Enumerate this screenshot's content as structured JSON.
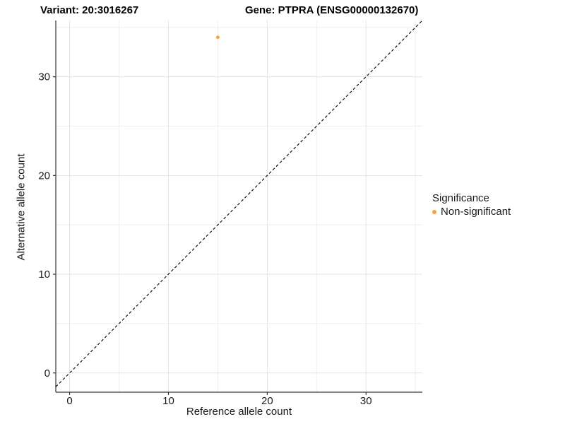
{
  "chart_data": {
    "type": "scatter",
    "titles": {
      "left": "Variant: 20:3016267",
      "right": "Gene: PTPRA (ENSG00000132670)"
    },
    "xlabel": "Reference allele count",
    "ylabel": "Alternative allele count",
    "xlim": [
      -1.4,
      35.7
    ],
    "ylim": [
      -1.95,
      35.7
    ],
    "x_ticks": [
      0,
      10,
      20,
      30
    ],
    "y_ticks": [
      0,
      10,
      20,
      30
    ],
    "x_minor_gridlines": [
      5,
      15,
      25,
      35
    ],
    "y_minor_gridlines": [
      5,
      15,
      25,
      35
    ],
    "grid": true,
    "identity_line": {
      "equation": "y = x",
      "style": "dashed",
      "color": "#000000"
    },
    "series": [
      {
        "name": "Non-significant",
        "color": "#F8A03C",
        "points": [
          {
            "x": 15,
            "y": 34
          }
        ]
      }
    ],
    "legend": {
      "title": "Significance",
      "position": "right",
      "items": [
        {
          "label": "Non-significant",
          "color": "#F8A03C",
          "marker": "circle"
        }
      ]
    }
  },
  "colors": {
    "background": "#FFFFFF",
    "axis_line": "#333333",
    "tick_text": "#1A1A1A",
    "grid_major": "#E3E3E3",
    "grid_minor": "#EFEFEF"
  }
}
